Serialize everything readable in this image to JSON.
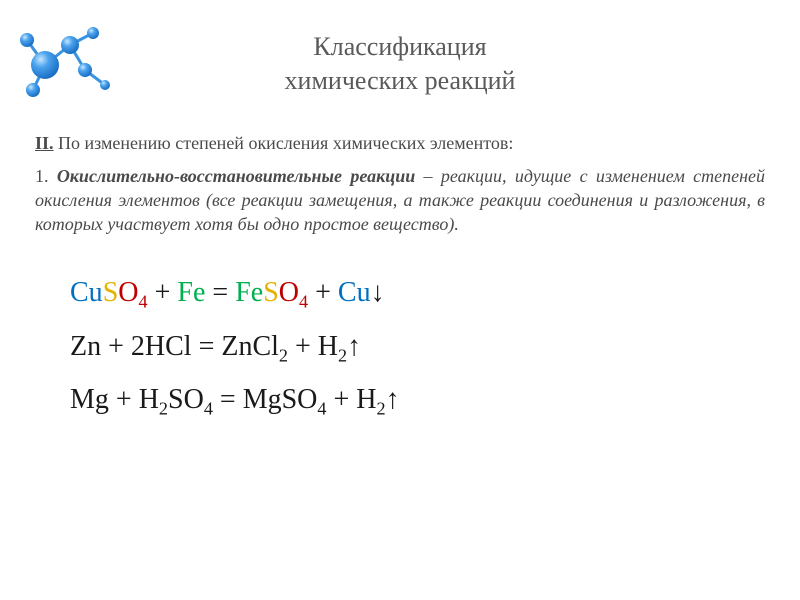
{
  "title_line1": "Классификация",
  "title_line2": "химических реакций",
  "section": {
    "roman": "II.",
    "header": " По изменению степеней окисления химических элементов:"
  },
  "definition": {
    "number": "1. ",
    "term": "Окислительно-восстановительные реакции",
    "rest": " – реакции, идущие с изменением степеней окисления элементов (все реакции замещения, а также реакции соединения и разложения, в которых участвует хотя бы одно простое вещество)."
  },
  "equations": {
    "eq1": {
      "parts": [
        {
          "text": "Cu",
          "color": "c-cu"
        },
        {
          "text": "S",
          "color": "c-s"
        },
        {
          "text": "O",
          "color": "c-o"
        },
        {
          "text": "4",
          "color": "c-o",
          "sub": true
        },
        {
          "text": " + ",
          "color": "c-black"
        },
        {
          "text": "Fe",
          "color": "c-fe"
        },
        {
          "text": " = ",
          "color": "c-black"
        },
        {
          "text": "Fe",
          "color": "c-fe"
        },
        {
          "text": "S",
          "color": "c-s"
        },
        {
          "text": "O",
          "color": "c-o"
        },
        {
          "text": "4",
          "color": "c-o",
          "sub": true
        },
        {
          "text": " + ",
          "color": "c-black"
        },
        {
          "text": "Cu",
          "color": "c-cu"
        },
        {
          "text": "↓",
          "color": "c-black"
        }
      ]
    },
    "eq2": {
      "parts": [
        {
          "text": "Zn + 2HCl = ZnCl",
          "color": "c-black"
        },
        {
          "text": "2",
          "color": "c-black",
          "sub": true
        },
        {
          "text": " + H",
          "color": "c-black"
        },
        {
          "text": "2",
          "color": "c-black",
          "sub": true
        },
        {
          "text": "↑",
          "color": "c-black"
        }
      ]
    },
    "eq3": {
      "parts": [
        {
          "text": "Mg + H",
          "color": "c-black"
        },
        {
          "text": "2",
          "color": "c-black",
          "sub": true
        },
        {
          "text": "SO",
          "color": "c-black"
        },
        {
          "text": "4",
          "color": "c-black",
          "sub": true
        },
        {
          "text": " = MgSO",
          "color": "c-black"
        },
        {
          "text": "4",
          "color": "c-black",
          "sub": true
        },
        {
          "text": " + H",
          "color": "c-black"
        },
        {
          "text": "2",
          "color": "c-black",
          "sub": true
        },
        {
          "text": "↑",
          "color": "c-black"
        }
      ]
    }
  },
  "molecule": {
    "atom_color": "#2d8fe8",
    "highlight_color": "#a8d4f7",
    "bond_color": "#2d8fe8"
  }
}
